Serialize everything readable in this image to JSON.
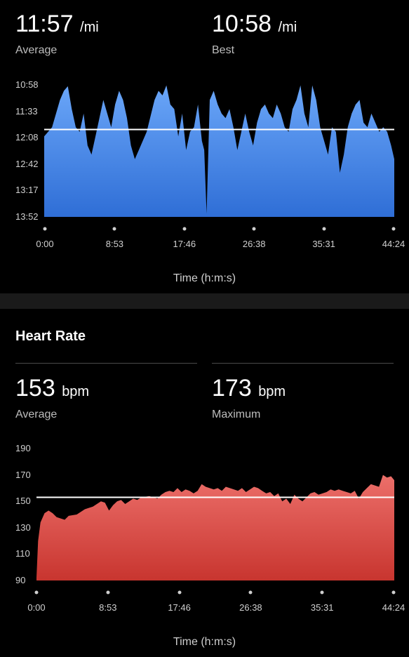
{
  "pace": {
    "average": {
      "value": "11:57",
      "unit": "/mi",
      "label": "Average"
    },
    "best": {
      "value": "10:58",
      "unit": "/mi",
      "label": "Best"
    }
  },
  "heart_rate": {
    "section_title": "Heart Rate",
    "average": {
      "value": "153",
      "unit": "bpm",
      "label": "Average"
    },
    "maximum": {
      "value": "173",
      "unit": "bpm",
      "label": "Maximum"
    }
  },
  "colors": {
    "pace_top": "#6aa6f8",
    "pace_bottom": "#2f6ed6",
    "hr_top": "#ec6f6a",
    "hr_bottom": "#c8352f",
    "average_line": "#ffffff"
  },
  "chart_data": [
    {
      "type": "area",
      "series_name": "pace",
      "ylabel": "",
      "xlabel": "Time (h:m:s)",
      "y_tick_labels": [
        "10:58",
        "11:33",
        "12:08",
        "12:42",
        "13:17",
        "13:52"
      ],
      "x_tick_labels": [
        "0:00",
        "8:53",
        "17:46",
        "26:38",
        "35:31",
        "44:24"
      ],
      "y_axis_inverted": true,
      "ylim_minutes": [
        10.97,
        13.87
      ],
      "xlim_minutes": [
        0,
        44.4
      ],
      "average_minutes": 11.95,
      "x": [
        0,
        1,
        2,
        2.5,
        3,
        3.5,
        4,
        4.5,
        5,
        5.5,
        6,
        6.5,
        7,
        7.5,
        8,
        8.5,
        9,
        9.5,
        10,
        10.5,
        11,
        11.5,
        12,
        13,
        14,
        14.5,
        15,
        15.5,
        16,
        16.5,
        17,
        17.5,
        18,
        18.5,
        19,
        19.5,
        20,
        20.3,
        20.6,
        21,
        21.5,
        22,
        22.5,
        23,
        23.5,
        24,
        24.5,
        25,
        25.5,
        26,
        26.5,
        27,
        27.5,
        28,
        28.5,
        29,
        29.5,
        30,
        30.5,
        31,
        31.5,
        32,
        32.5,
        33,
        33.5,
        34,
        34.5,
        35,
        35.5,
        36,
        36.5,
        37,
        37.5,
        38,
        38.5,
        39,
        39.5,
        40,
        40.5,
        41,
        41.5,
        42,
        42.5,
        43,
        43.5,
        44,
        44.4
      ],
      "y": [
        12.1,
        11.9,
        11.3,
        11.1,
        11.0,
        11.5,
        11.9,
        12.0,
        11.6,
        12.3,
        12.5,
        12.1,
        11.7,
        11.3,
        11.6,
        11.9,
        11.4,
        11.1,
        11.3,
        11.7,
        12.3,
        12.6,
        12.4,
        12.0,
        11.3,
        11.1,
        11.2,
        10.98,
        11.4,
        11.5,
        12.1,
        11.6,
        12.4,
        12.0,
        11.9,
        11.4,
        12.2,
        12.4,
        13.8,
        11.3,
        11.1,
        11.4,
        11.6,
        11.7,
        11.5,
        11.9,
        12.4,
        12.0,
        11.6,
        12.0,
        12.3,
        11.8,
        11.5,
        11.4,
        11.6,
        11.7,
        11.4,
        11.6,
        11.9,
        12.0,
        11.5,
        11.3,
        10.98,
        11.6,
        11.9,
        10.98,
        11.3,
        11.9,
        12.2,
        12.5,
        11.9,
        12.0,
        12.9,
        12.5,
        11.9,
        11.6,
        11.4,
        11.3,
        11.8,
        11.9,
        11.6,
        11.8,
        12.0,
        11.9,
        12.0,
        12.3,
        12.6
      ]
    },
    {
      "type": "area",
      "series_name": "heart_rate",
      "ylabel": "",
      "xlabel": "Time (h:m:s)",
      "y_tick_labels": [
        "190",
        "170",
        "150",
        "130",
        "110",
        "90"
      ],
      "x_tick_labels": [
        "0:00",
        "8:53",
        "17:46",
        "26:38",
        "35:31",
        "44:24"
      ],
      "ylim": [
        90,
        190
      ],
      "xlim_minutes": [
        0,
        44.4
      ],
      "average": 153,
      "x": [
        0,
        0.2,
        0.5,
        1,
        1.5,
        2,
        2.5,
        3,
        3.5,
        4,
        5,
        6,
        7,
        8,
        8.5,
        9,
        9.5,
        10,
        10.5,
        11,
        11.5,
        12,
        12.5,
        13,
        14,
        15,
        15.5,
        16,
        16.5,
        17,
        17.5,
        18,
        18.5,
        19,
        19.5,
        20,
        20.5,
        21,
        21.5,
        22,
        22.5,
        23,
        23.5,
        24,
        24.5,
        25,
        25.5,
        26,
        26.5,
        27,
        27.5,
        28,
        28.5,
        29,
        29.5,
        30,
        30.5,
        31,
        31.5,
        32,
        32.5,
        33,
        33.5,
        34,
        34.5,
        35,
        35.5,
        36,
        36.5,
        37,
        37.5,
        38,
        38.5,
        39,
        39.5,
        40,
        40.5,
        41,
        41.5,
        42,
        42.5,
        43,
        43.5,
        44,
        44.4
      ],
      "y": [
        92,
        120,
        134,
        141,
        143,
        141,
        138,
        137,
        136,
        139,
        140,
        144,
        146,
        150,
        149,
        143,
        147,
        150,
        151,
        148,
        150,
        152,
        151,
        153,
        154,
        152,
        155,
        157,
        158,
        157,
        160,
        157,
        159,
        158,
        156,
        158,
        163,
        161,
        160,
        159,
        160,
        158,
        161,
        160,
        159,
        158,
        160,
        157,
        159,
        161,
        160,
        158,
        156,
        157,
        154,
        156,
        150,
        152,
        148,
        155,
        152,
        150,
        153,
        156,
        157,
        155,
        156,
        157,
        159,
        158,
        159,
        158,
        157,
        156,
        158,
        152,
        157,
        160,
        163,
        162,
        161,
        170,
        168,
        169,
        166
      ]
    }
  ]
}
